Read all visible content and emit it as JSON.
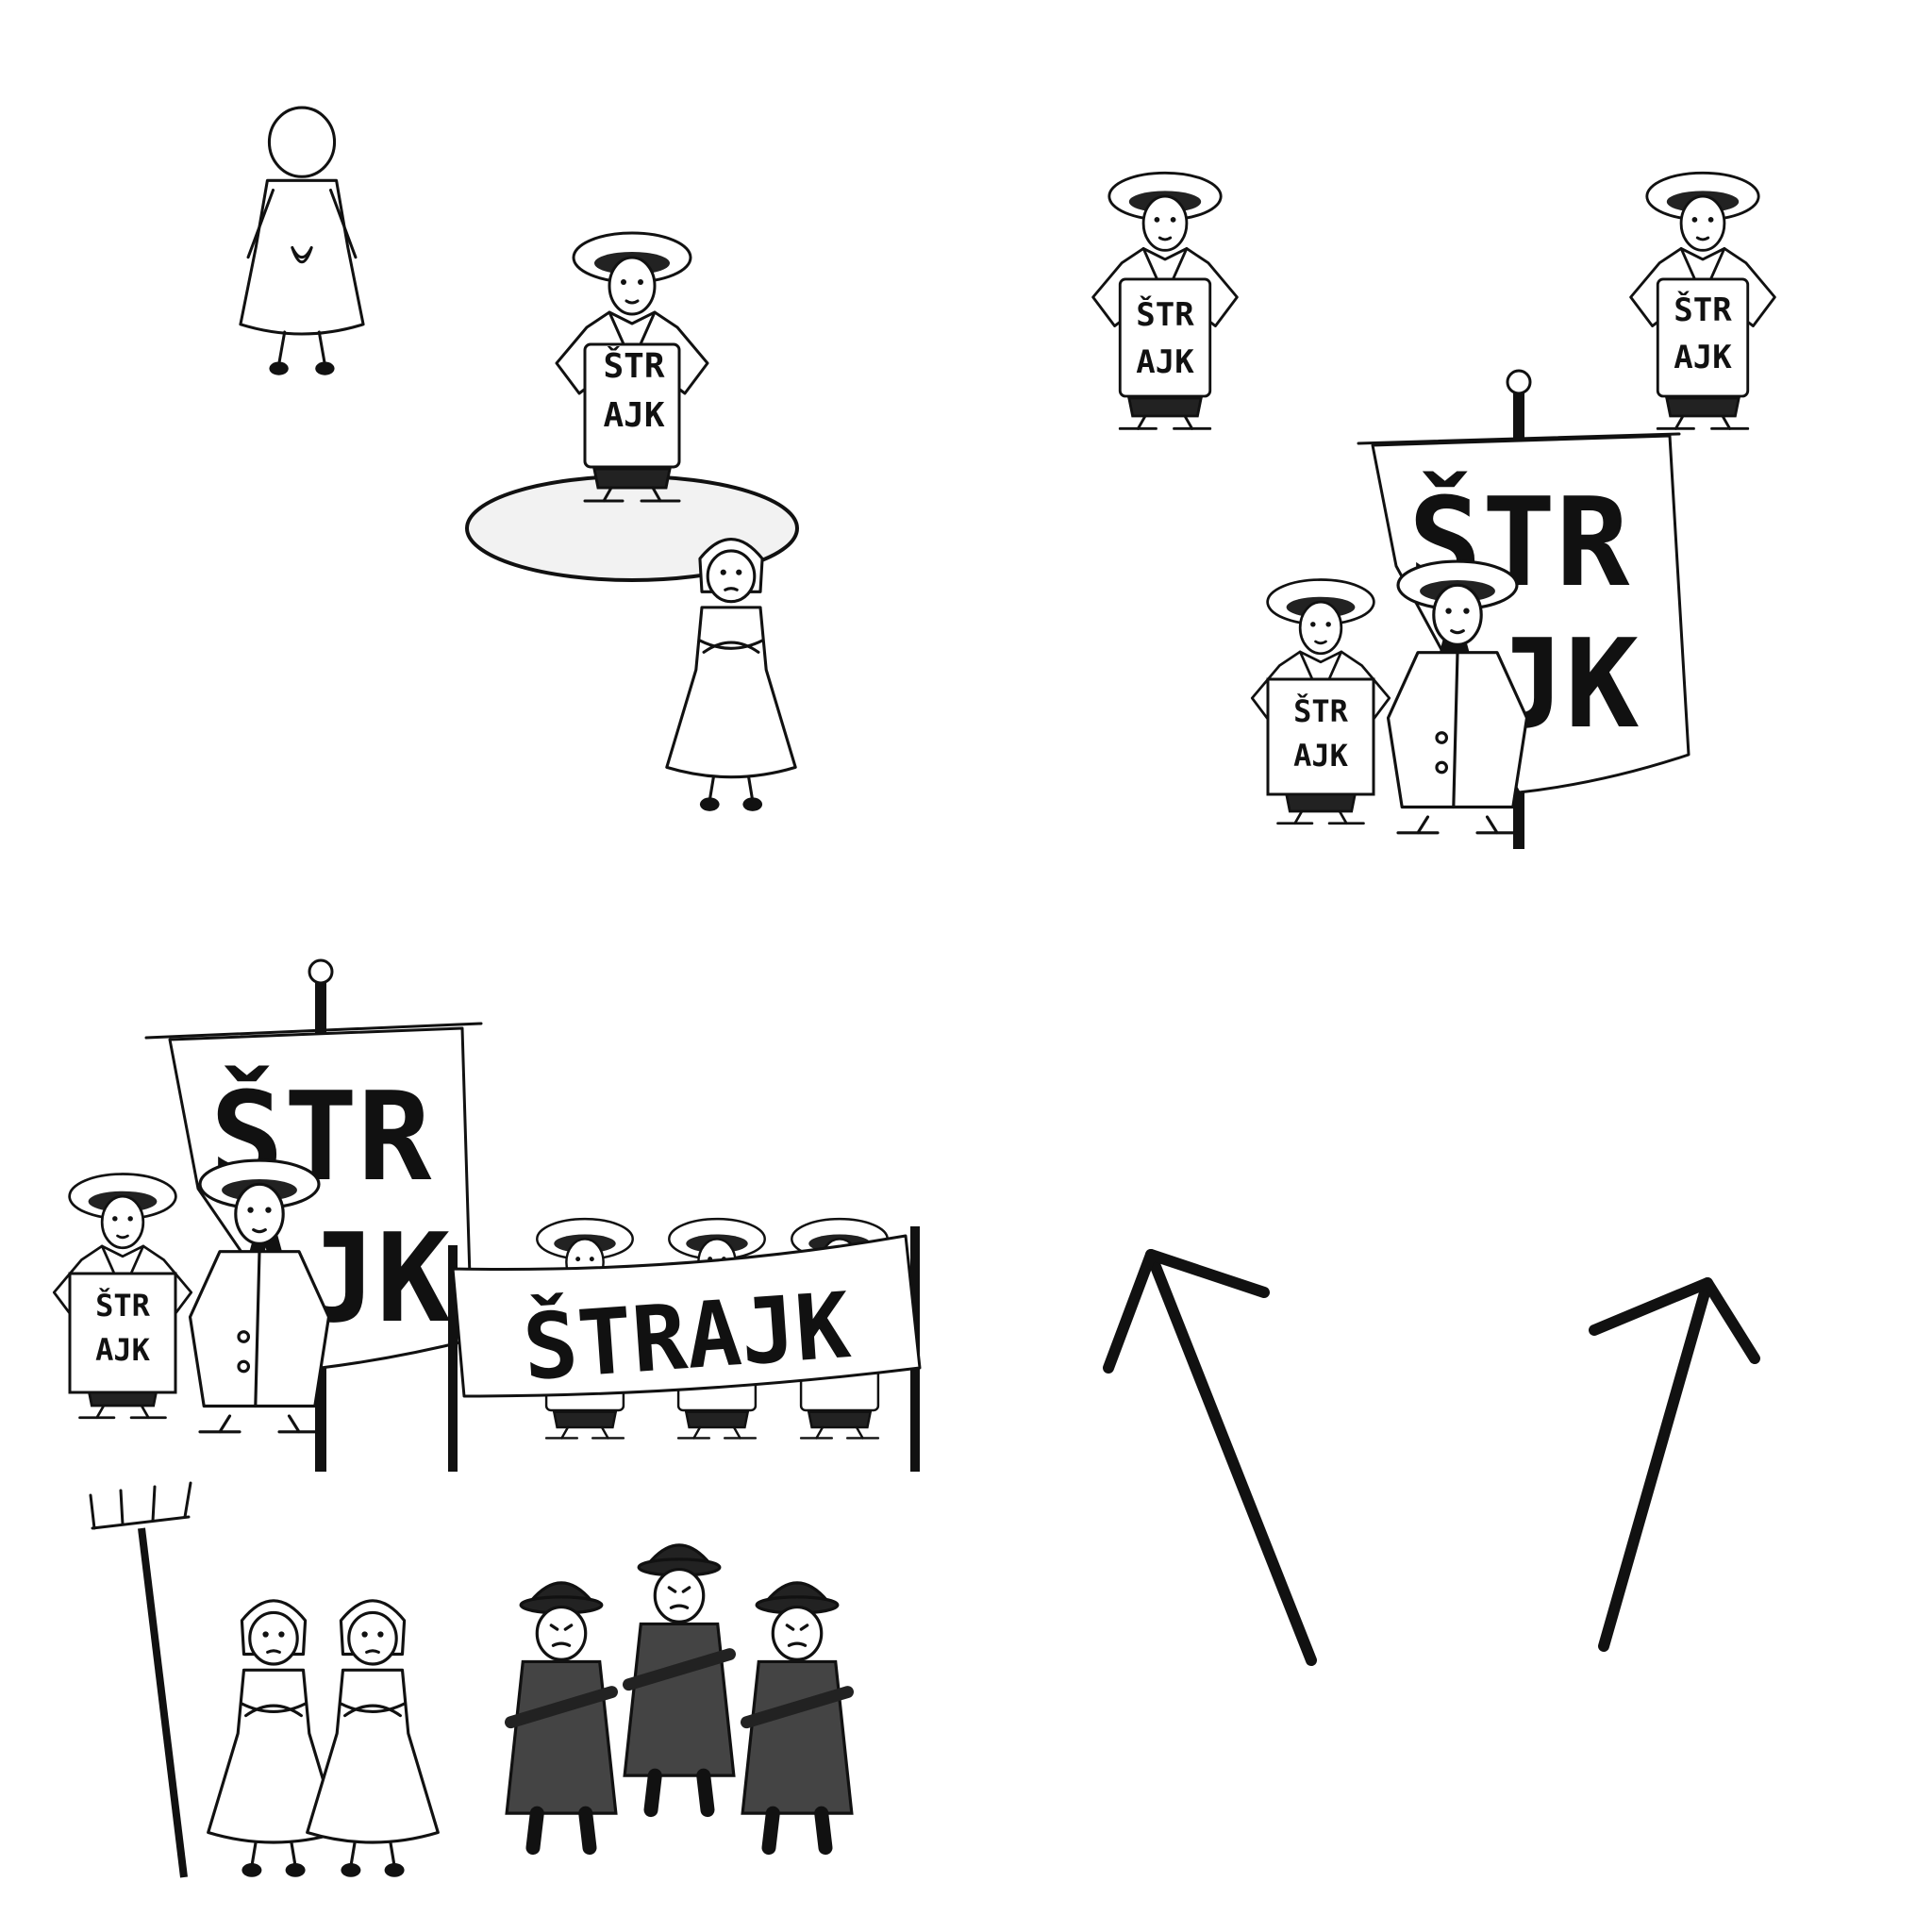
{
  "sprites": {
    "sign_line1": "ŠTR",
    "sign_line2": "AJK",
    "flag_line1": "ŠTR",
    "flag_line2": "AJK",
    "banner_text": "ŠTRAJK"
  },
  "colors": {
    "ink": "#111111",
    "background": "#ffffff",
    "selection_fill": "#f2f2f2",
    "police": "#444444"
  },
  "icons": [
    "move-arrow-icon",
    "pitchfork-icon"
  ]
}
